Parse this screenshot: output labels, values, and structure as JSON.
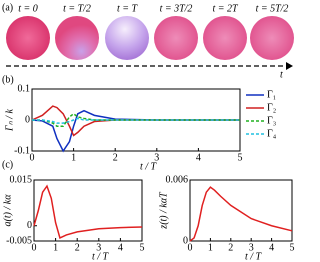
{
  "panel_labels": [
    "(a)",
    "(b)",
    "(c)"
  ],
  "snapshots": {
    "times": [
      "t = 0",
      "t = T/2",
      "t = T",
      "t = 3T/2",
      "t = 2T",
      "t = 5T/2"
    ],
    "axis_label": "t"
  },
  "chart_data": [
    {
      "type": "line",
      "xlabel": "t / T",
      "ylabel": "Γₙ / k",
      "x": [
        0,
        0.25,
        0.5,
        0.6,
        0.75,
        0.9,
        1,
        1.1,
        1.25,
        1.5,
        2,
        3,
        4,
        5
      ],
      "xlim": [
        0,
        5
      ],
      "xticks": [
        0,
        1,
        2,
        3,
        4,
        5
      ],
      "ylim": [
        -0.1,
        0.1
      ],
      "yticks": [
        -0.1,
        0,
        0.1
      ],
      "legend": "right",
      "series": [
        {
          "name": "Γ₁",
          "color": "#1030c0",
          "dash": false,
          "values": [
            0,
            -0.003,
            -0.02,
            -0.06,
            -0.1,
            -0.07,
            -0.02,
            0.02,
            0.03,
            0.015,
            0.003,
            0,
            0,
            0
          ]
        },
        {
          "name": "Γ₂",
          "color": "#d02020",
          "dash": false,
          "values": [
            0,
            0.015,
            0.045,
            0.04,
            0.02,
            -0.02,
            -0.05,
            -0.04,
            -0.02,
            -0.005,
            0,
            0,
            0,
            0
          ]
        },
        {
          "name": "Γ₃",
          "color": "#20b020",
          "dash": true,
          "values": [
            0,
            0,
            -0.01,
            -0.02,
            -0.02,
            0.01,
            0.02,
            0.01,
            0.005,
            0,
            0,
            0,
            0,
            0
          ]
        },
        {
          "name": "Γ₄",
          "color": "#20c0e0",
          "dash": true,
          "values": [
            0,
            0,
            -0.005,
            -0.01,
            -0.01,
            -0.005,
            0,
            0.005,
            0,
            0,
            0,
            0,
            0,
            0
          ]
        }
      ]
    },
    {
      "type": "line",
      "xlabel": "t / T",
      "ylabel": "a(t) / kα",
      "x": [
        0,
        0.2,
        0.4,
        0.6,
        0.8,
        1,
        1.2,
        1.5,
        2,
        3,
        4,
        5
      ],
      "xlim": [
        0,
        5
      ],
      "xticks": [
        0,
        1,
        2,
        3,
        4,
        5
      ],
      "ylim": [
        -0.005,
        0.015
      ],
      "yticks": [
        -0.005,
        0,
        0.015
      ],
      "series": [
        {
          "color": "#e02020",
          "dash": false,
          "values": [
            0,
            0.005,
            0.011,
            0.013,
            0.009,
            0.001,
            -0.004,
            -0.003,
            -0.002,
            -0.001,
            -0.0006,
            -0.0004
          ]
        }
      ]
    },
    {
      "type": "line",
      "xlabel": "t / T",
      "ylabel": "z(t) / kαT",
      "x": [
        0,
        0.2,
        0.4,
        0.6,
        0.8,
        1,
        1.2,
        1.5,
        2,
        3,
        4,
        5
      ],
      "xlim": [
        0,
        5
      ],
      "xticks": [
        0,
        1,
        2,
        3,
        4,
        5
      ],
      "ylim": [
        0,
        0.006
      ],
      "yticks": [
        0,
        0.006
      ],
      "series": [
        {
          "color": "#e02020",
          "dash": false,
          "values": [
            0,
            0.0003,
            0.0015,
            0.0035,
            0.0048,
            0.0053,
            0.005,
            0.0044,
            0.0035,
            0.0022,
            0.0015,
            0.001
          ]
        }
      ]
    }
  ]
}
